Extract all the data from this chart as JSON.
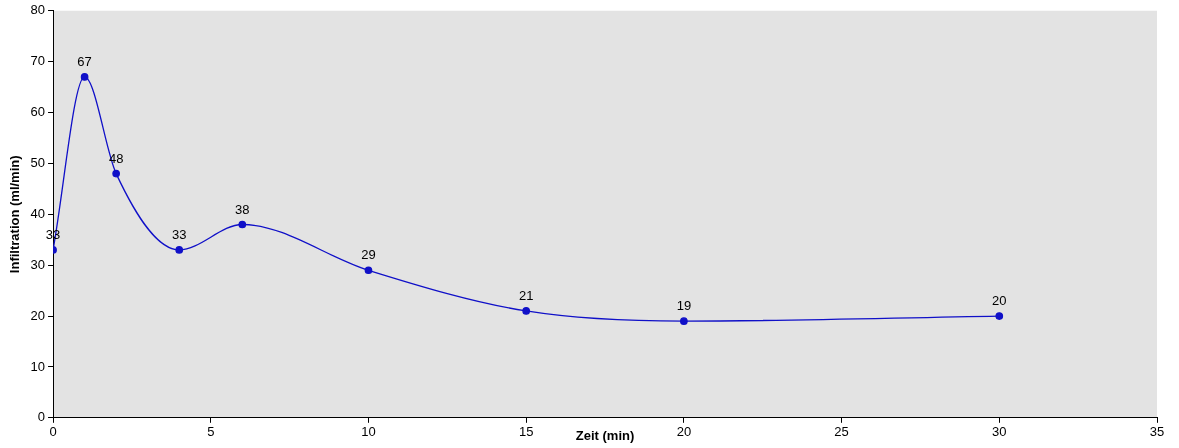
{
  "chart_data": {
    "type": "line",
    "xlabel": "Zeit (min)",
    "ylabel": "Infiltration (ml/min)",
    "x": [
      0,
      1,
      2,
      4,
      6,
      10,
      15,
      20,
      30
    ],
    "series": [
      {
        "color": "#1010c8",
        "values": [
          33,
          67,
          48,
          33,
          38,
          29,
          21,
          19,
          20
        ]
      }
    ],
    "xlim": [
      0,
      35
    ],
    "xticks": [
      0,
      5,
      10,
      15,
      20,
      25,
      30,
      35
    ],
    "ylim": [
      0,
      80
    ],
    "yticks": [
      0,
      10,
      20,
      30,
      40,
      50,
      60,
      70,
      80
    ],
    "grid": false,
    "legend": false,
    "marker": "circle",
    "line_style": "solid",
    "data_labels": true
  }
}
